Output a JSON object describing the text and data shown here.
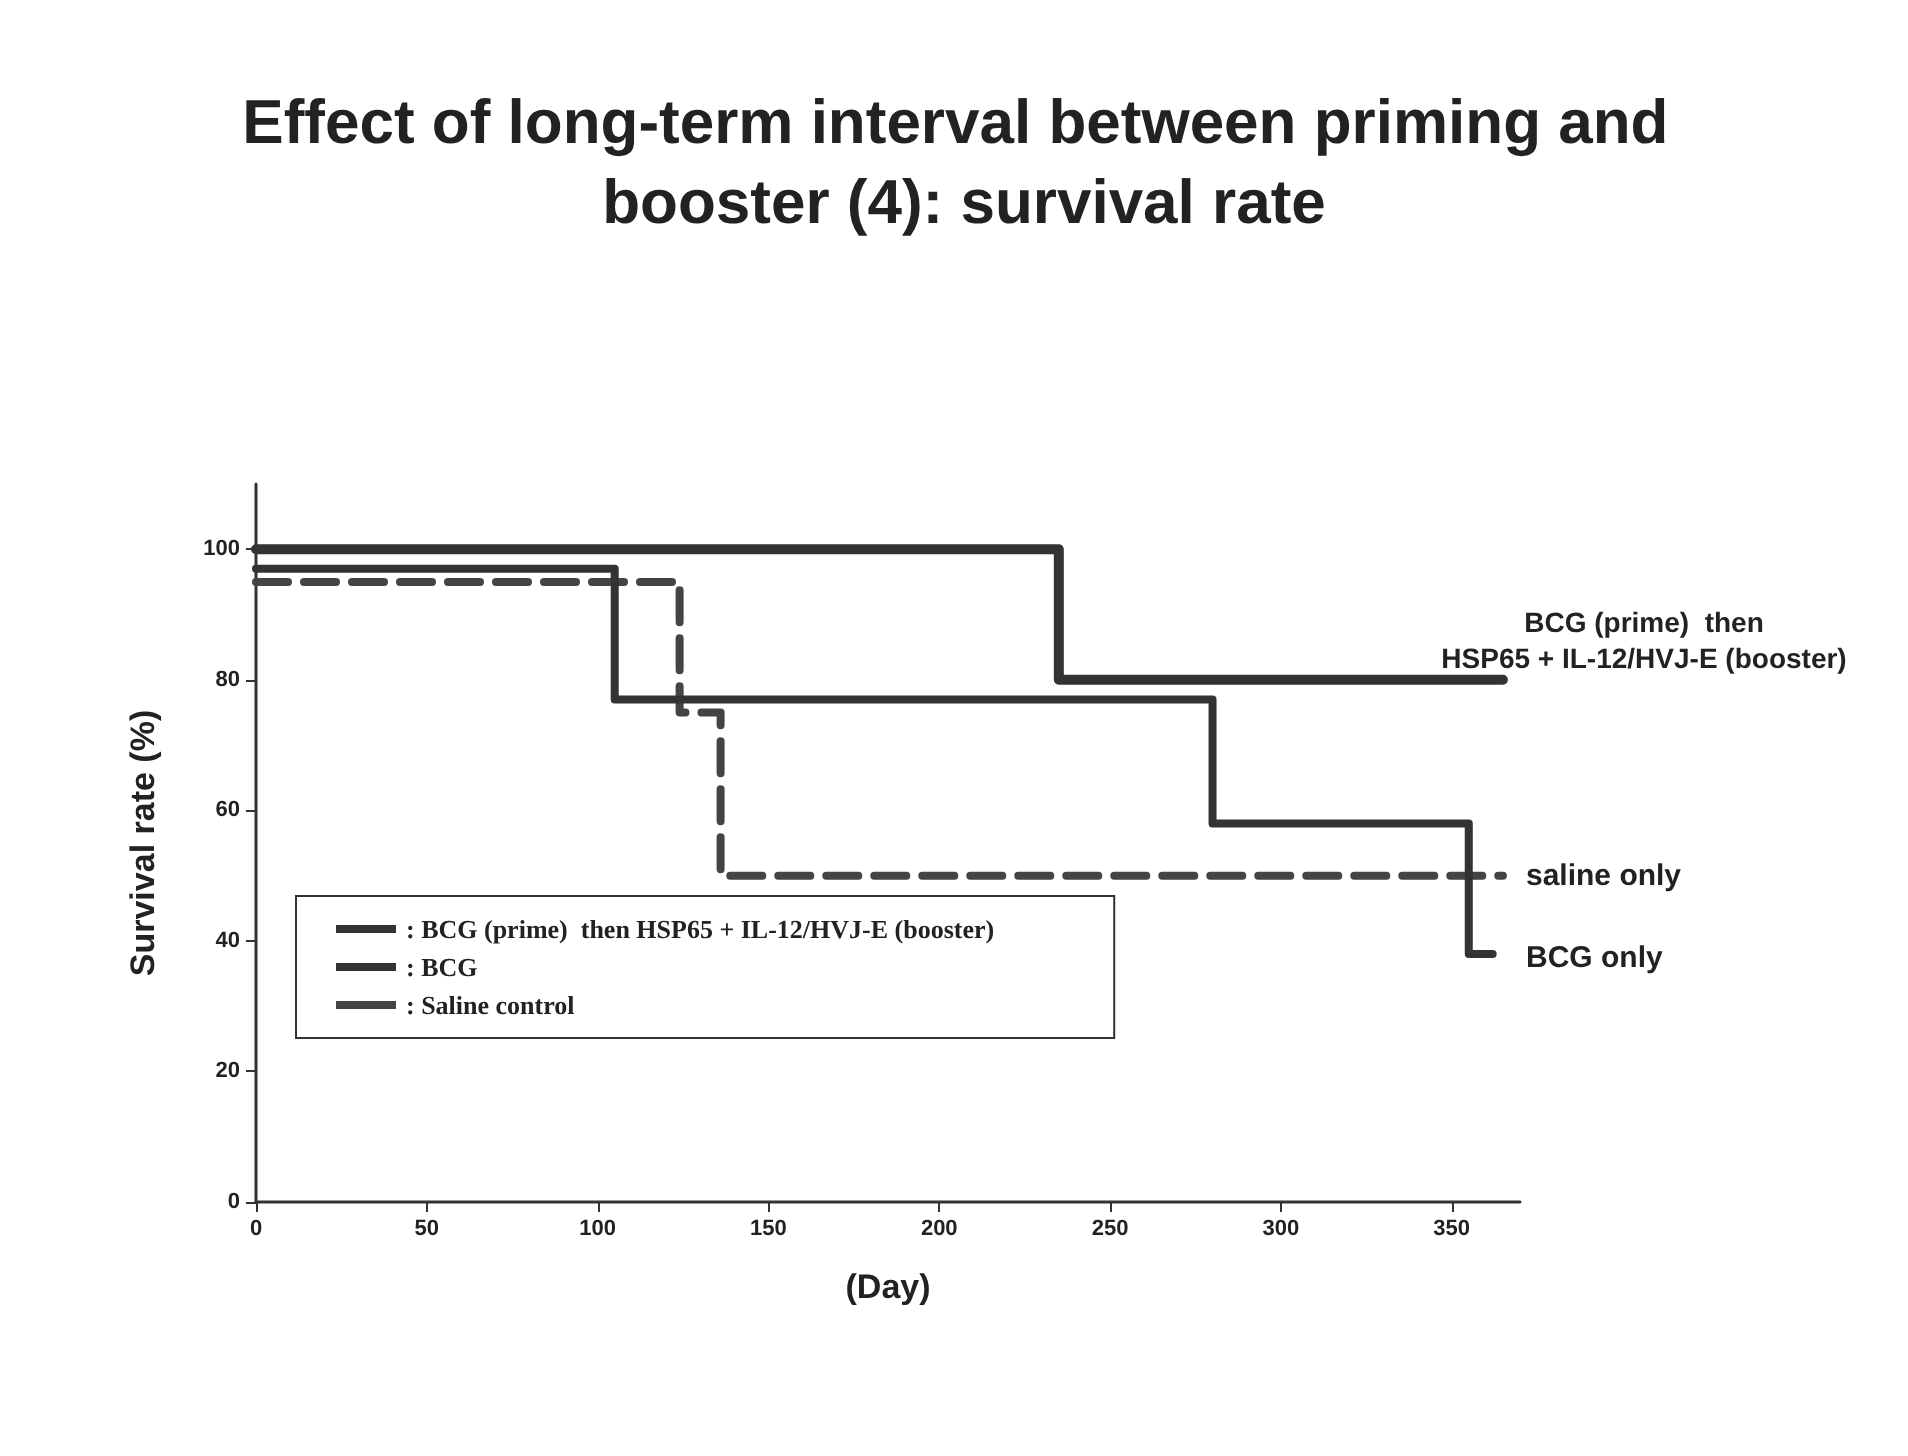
{
  "chart_data": {
    "type": "step",
    "title": "Effect of long-term interval between priming and booster (4): survival rate",
    "xlabel": "(Day)",
    "ylabel": "Survival rate (%)",
    "xlim": [
      0,
      370
    ],
    "xticks": [
      0,
      50,
      100,
      150,
      200,
      250,
      300,
      350
    ],
    "ylim": [
      0,
      110
    ],
    "yticks": [
      0,
      20,
      40,
      60,
      80,
      100
    ],
    "grid": false,
    "legend": "bottom left",
    "marker": "none",
    "series": [
      {
        "name": ": BCG (prime)  then HSP65 + IL-12/HVJ-E (booster)",
        "color": "#333333",
        "line_style": "solid",
        "x": [
          0,
          235,
          365
        ],
        "values": [
          100,
          80,
          80
        ]
      },
      {
        "name": ": BCG",
        "color": "#333333",
        "line_style": "solid",
        "x": [
          0,
          105,
          280,
          355,
          362
        ],
        "values": [
          97,
          77,
          58,
          38,
          38
        ]
      },
      {
        "name": ": Saline control",
        "color": "#444444",
        "line_style": "dashed",
        "x": [
          0,
          124,
          136,
          365
        ],
        "values": [
          95,
          75,
          50,
          50
        ]
      }
    ],
    "annotations": [
      "BCG (prime)  then\nHSP65 + IL-12/HVJ-E (booster)",
      "saline only",
      "BCG only"
    ]
  }
}
